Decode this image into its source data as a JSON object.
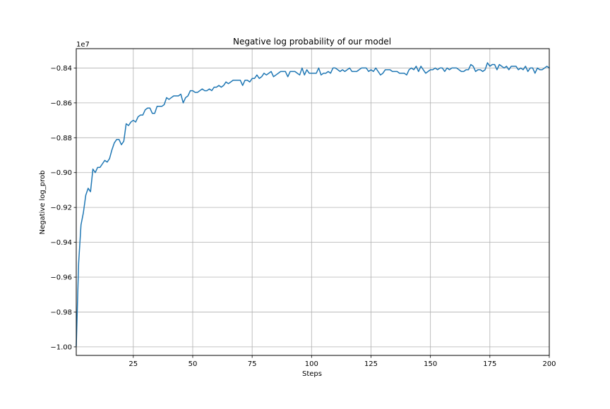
{
  "chart_data": {
    "type": "line",
    "title": "Negative log probability of our model",
    "xlabel": "Steps",
    "ylabel": "Negative log_prob",
    "y_offset_label": "1e7",
    "xlim": [
      1,
      200
    ],
    "ylim": [
      -1.0049,
      -0.8289
    ],
    "xticks": [
      25,
      50,
      75,
      100,
      125,
      150,
      175,
      200
    ],
    "yticks": [
      -1.0,
      -0.98,
      -0.96,
      -0.94,
      -0.92,
      -0.9,
      -0.88,
      -0.86,
      -0.84
    ],
    "ytick_labels": [
      "−1.00",
      "−0.98",
      "−0.96",
      "−0.94",
      "−0.92",
      "−0.90",
      "−0.88",
      "−0.86",
      "−0.84"
    ],
    "grid": true,
    "line_color": "#1f77b4",
    "series": [
      {
        "x_start": 1,
        "x_step": 1,
        "values": [
          -0.9995,
          -0.952,
          -0.93,
          -0.923,
          -0.913,
          -0.909,
          -0.911,
          -0.898,
          -0.9,
          -0.897,
          -0.897,
          -0.895,
          -0.893,
          -0.894,
          -0.892,
          -0.887,
          -0.883,
          -0.881,
          -0.881,
          -0.884,
          -0.882,
          -0.872,
          -0.873,
          -0.871,
          -0.87,
          -0.871,
          -0.868,
          -0.867,
          -0.867,
          -0.864,
          -0.863,
          -0.863,
          -0.866,
          -0.866,
          -0.862,
          -0.862,
          -0.862,
          -0.861,
          -0.857,
          -0.858,
          -0.857,
          -0.856,
          -0.856,
          -0.856,
          -0.855,
          -0.86,
          -0.857,
          -0.856,
          -0.853,
          -0.853,
          -0.854,
          -0.854,
          -0.853,
          -0.852,
          -0.853,
          -0.853,
          -0.852,
          -0.853,
          -0.851,
          -0.851,
          -0.85,
          -0.851,
          -0.85,
          -0.848,
          -0.849,
          -0.848,
          -0.847,
          -0.847,
          -0.847,
          -0.847,
          -0.85,
          -0.847,
          -0.847,
          -0.848,
          -0.846,
          -0.846,
          -0.844,
          -0.846,
          -0.845,
          -0.843,
          -0.844,
          -0.843,
          -0.842,
          -0.845,
          -0.844,
          -0.843,
          -0.842,
          -0.842,
          -0.842,
          -0.845,
          -0.842,
          -0.842,
          -0.842,
          -0.843,
          -0.844,
          -0.84,
          -0.844,
          -0.841,
          -0.843,
          -0.843,
          -0.843,
          -0.843,
          -0.84,
          -0.844,
          -0.843,
          -0.843,
          -0.842,
          -0.843,
          -0.84,
          -0.84,
          -0.841,
          -0.842,
          -0.841,
          -0.842,
          -0.841,
          -0.84,
          -0.842,
          -0.842,
          -0.842,
          -0.841,
          -0.84,
          -0.84,
          -0.84,
          -0.842,
          -0.841,
          -0.842,
          -0.84,
          -0.842,
          -0.844,
          -0.843,
          -0.841,
          -0.841,
          -0.841,
          -0.842,
          -0.842,
          -0.842,
          -0.843,
          -0.843,
          -0.843,
          -0.844,
          -0.841,
          -0.84,
          -0.841,
          -0.839,
          -0.842,
          -0.839,
          -0.841,
          -0.843,
          -0.842,
          -0.841,
          -0.841,
          -0.84,
          -0.841,
          -0.84,
          -0.84,
          -0.842,
          -0.84,
          -0.841,
          -0.84,
          -0.84,
          -0.84,
          -0.841,
          -0.842,
          -0.842,
          -0.841,
          -0.841,
          -0.838,
          -0.839,
          -0.842,
          -0.841,
          -0.841,
          -0.842,
          -0.841,
          -0.837,
          -0.839,
          -0.838,
          -0.838,
          -0.841,
          -0.838,
          -0.839,
          -0.84,
          -0.839,
          -0.841,
          -0.839,
          -0.839,
          -0.839,
          -0.841,
          -0.84,
          -0.841,
          -0.839,
          -0.842,
          -0.84,
          -0.84,
          -0.843,
          -0.84,
          -0.841,
          -0.841,
          -0.84,
          -0.839,
          -0.84
        ]
      }
    ]
  }
}
